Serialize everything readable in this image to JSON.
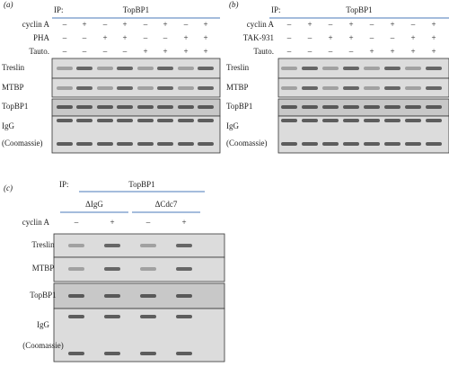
{
  "panels": [
    {
      "label": "(a)",
      "ip_label": "IP:",
      "ip_target": "TopBP1",
      "conditions": [
        {
          "name": "cyclin A",
          "signs": [
            "–",
            "+",
            "–",
            "+",
            "–",
            "+",
            "–",
            "+"
          ]
        },
        {
          "name": "PHA",
          "signs": [
            "–",
            "–",
            "+",
            "+",
            "–",
            "–",
            "+",
            "+"
          ]
        },
        {
          "name": "Tauto.",
          "signs": [
            "–",
            "–",
            "–",
            "–",
            "+",
            "+",
            "+",
            "+"
          ]
        }
      ],
      "rows": [
        "Treslin",
        "MTBP",
        "TopBP1",
        "IgG",
        "(Coomassie)"
      ]
    },
    {
      "label": "(b)",
      "ip_label": "IP:",
      "ip_target": "TopBP1",
      "conditions": [
        {
          "name": "cyclin A",
          "signs": [
            "–",
            "+",
            "–",
            "+",
            "–",
            "+",
            "–",
            "+"
          ]
        },
        {
          "name": "TAK-931",
          "signs": [
            "–",
            "–",
            "+",
            "+",
            "–",
            "–",
            "+",
            "+"
          ]
        },
        {
          "name": "Tauto.",
          "signs": [
            "–",
            "–",
            "–",
            "–",
            "+",
            "+",
            "+",
            "+"
          ]
        }
      ],
      "rows": [
        "Treslin",
        "MTBP",
        "TopBP1",
        "IgG",
        "(Coomassie)"
      ]
    },
    {
      "label": "(c)",
      "ip_label": "IP:",
      "ip_target": "TopBP1",
      "groups": [
        "ΔIgG",
        "ΔCdc7"
      ],
      "conditions": [
        {
          "name": "cyclin A",
          "signs": [
            "–",
            "+",
            "–",
            "+"
          ]
        }
      ],
      "rows": [
        "Treslin",
        "MTBP",
        "TopBP1",
        "IgG",
        "(Coomassie)"
      ]
    }
  ]
}
